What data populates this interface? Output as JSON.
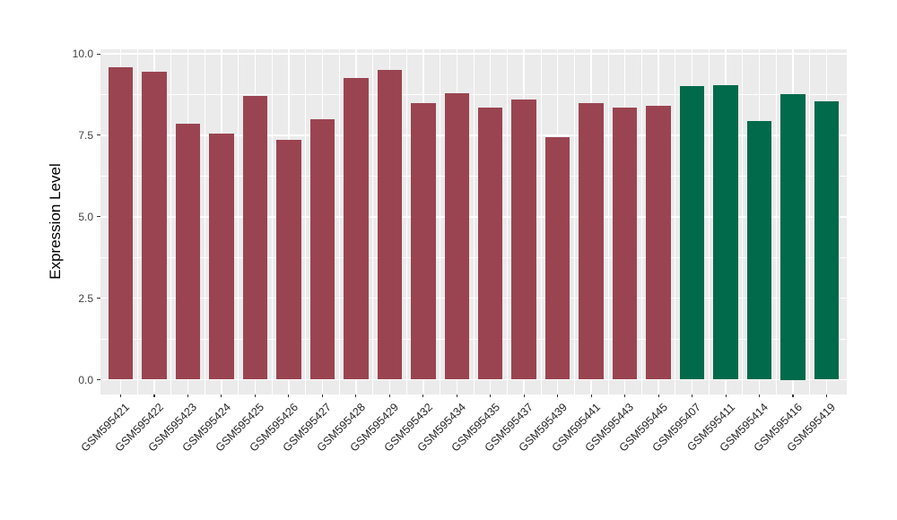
{
  "chart_data": {
    "type": "bar",
    "title": "",
    "xlabel": "",
    "ylabel": "Expression Level",
    "ylim": [
      0,
      10
    ],
    "yticks": [
      0,
      2.5,
      5,
      7.5,
      10
    ],
    "ytick_labels": [
      "0.0",
      "2.5",
      "5.0",
      "7.5",
      "10.0"
    ],
    "yticks_minor": [
      1.25,
      3.75,
      6.25,
      8.75
    ],
    "grid": "white major and minor gridlines on gray panel",
    "legend_position": "none",
    "categories": [
      "GSM595421",
      "GSM595422",
      "GSM595423",
      "GSM595424",
      "GSM595425",
      "GSM595426",
      "GSM595427",
      "GSM595428",
      "GSM595429",
      "GSM595432",
      "GSM595434",
      "GSM595435",
      "GSM595437",
      "GSM595439",
      "GSM595441",
      "GSM595443",
      "GSM595445",
      "GSM595407",
      "GSM595411",
      "GSM595414",
      "GSM595416",
      "GSM595419"
    ],
    "values": [
      9.6,
      9.45,
      7.85,
      7.55,
      8.7,
      7.35,
      8.0,
      9.25,
      9.5,
      8.5,
      8.8,
      8.35,
      8.6,
      7.45,
      8.5,
      8.35,
      8.4,
      9.0,
      9.05,
      7.95,
      8.75,
      8.55
    ],
    "bar_colors": [
      "#9B4451",
      "#9B4451",
      "#9B4451",
      "#9B4451",
      "#9B4451",
      "#9B4451",
      "#9B4451",
      "#9B4451",
      "#9B4451",
      "#9B4451",
      "#9B4451",
      "#9B4451",
      "#9B4451",
      "#9B4451",
      "#9B4451",
      "#9B4451",
      "#9B4451",
      "#016A4B",
      "#016A4B",
      "#016A4B",
      "#016A4B",
      "#016A4B"
    ],
    "colors": {
      "panel_bg": "#EBEBEB",
      "grid": "#FFFFFF",
      "bar_group_1": "#9B4451",
      "bar_group_2": "#016A4B",
      "tick_mark": "#333333",
      "tick_text": "#404040",
      "axis_title_text": "#000000",
      "page_bg": "#FFFFFF"
    }
  }
}
